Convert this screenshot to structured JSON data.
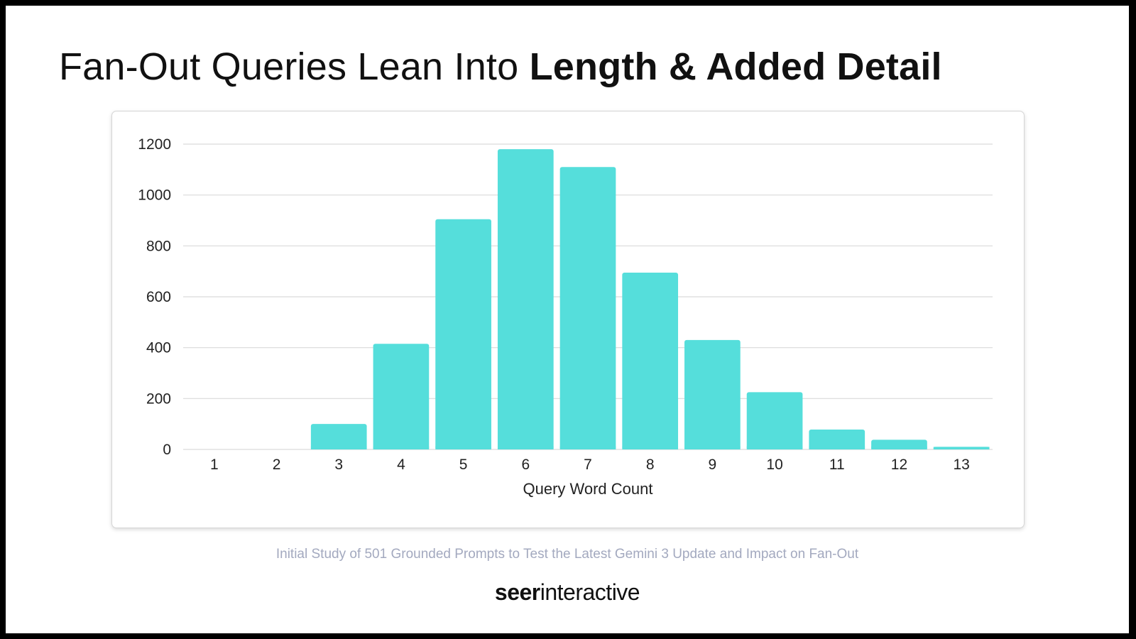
{
  "title": {
    "regular": "Fan-Out Queries Lean Into ",
    "bold": "Length & Added Detail"
  },
  "caption": "Initial Study of 501 Grounded Prompts to Test the Latest Gemini 3 Update and Impact on Fan-Out",
  "brand": {
    "part1": "seer",
    "part2": "interactive"
  },
  "chart_data": {
    "type": "bar",
    "title": "Fan-Out Queries Lean Into Length & Added Detail",
    "xlabel": "Query Word Count",
    "ylabel": "",
    "categories": [
      "1",
      "2",
      "3",
      "4",
      "5",
      "6",
      "7",
      "8",
      "9",
      "10",
      "11",
      "12",
      "13"
    ],
    "values": [
      0,
      0,
      100,
      415,
      905,
      1180,
      1110,
      695,
      430,
      225,
      78,
      38,
      10
    ],
    "ylim": [
      0,
      1200
    ],
    "yticks": [
      0,
      200,
      400,
      600,
      800,
      1000,
      1200
    ],
    "grid": true,
    "legend": "none",
    "bar_color": "#55dedb",
    "grid_color": "#d9d9d9"
  }
}
